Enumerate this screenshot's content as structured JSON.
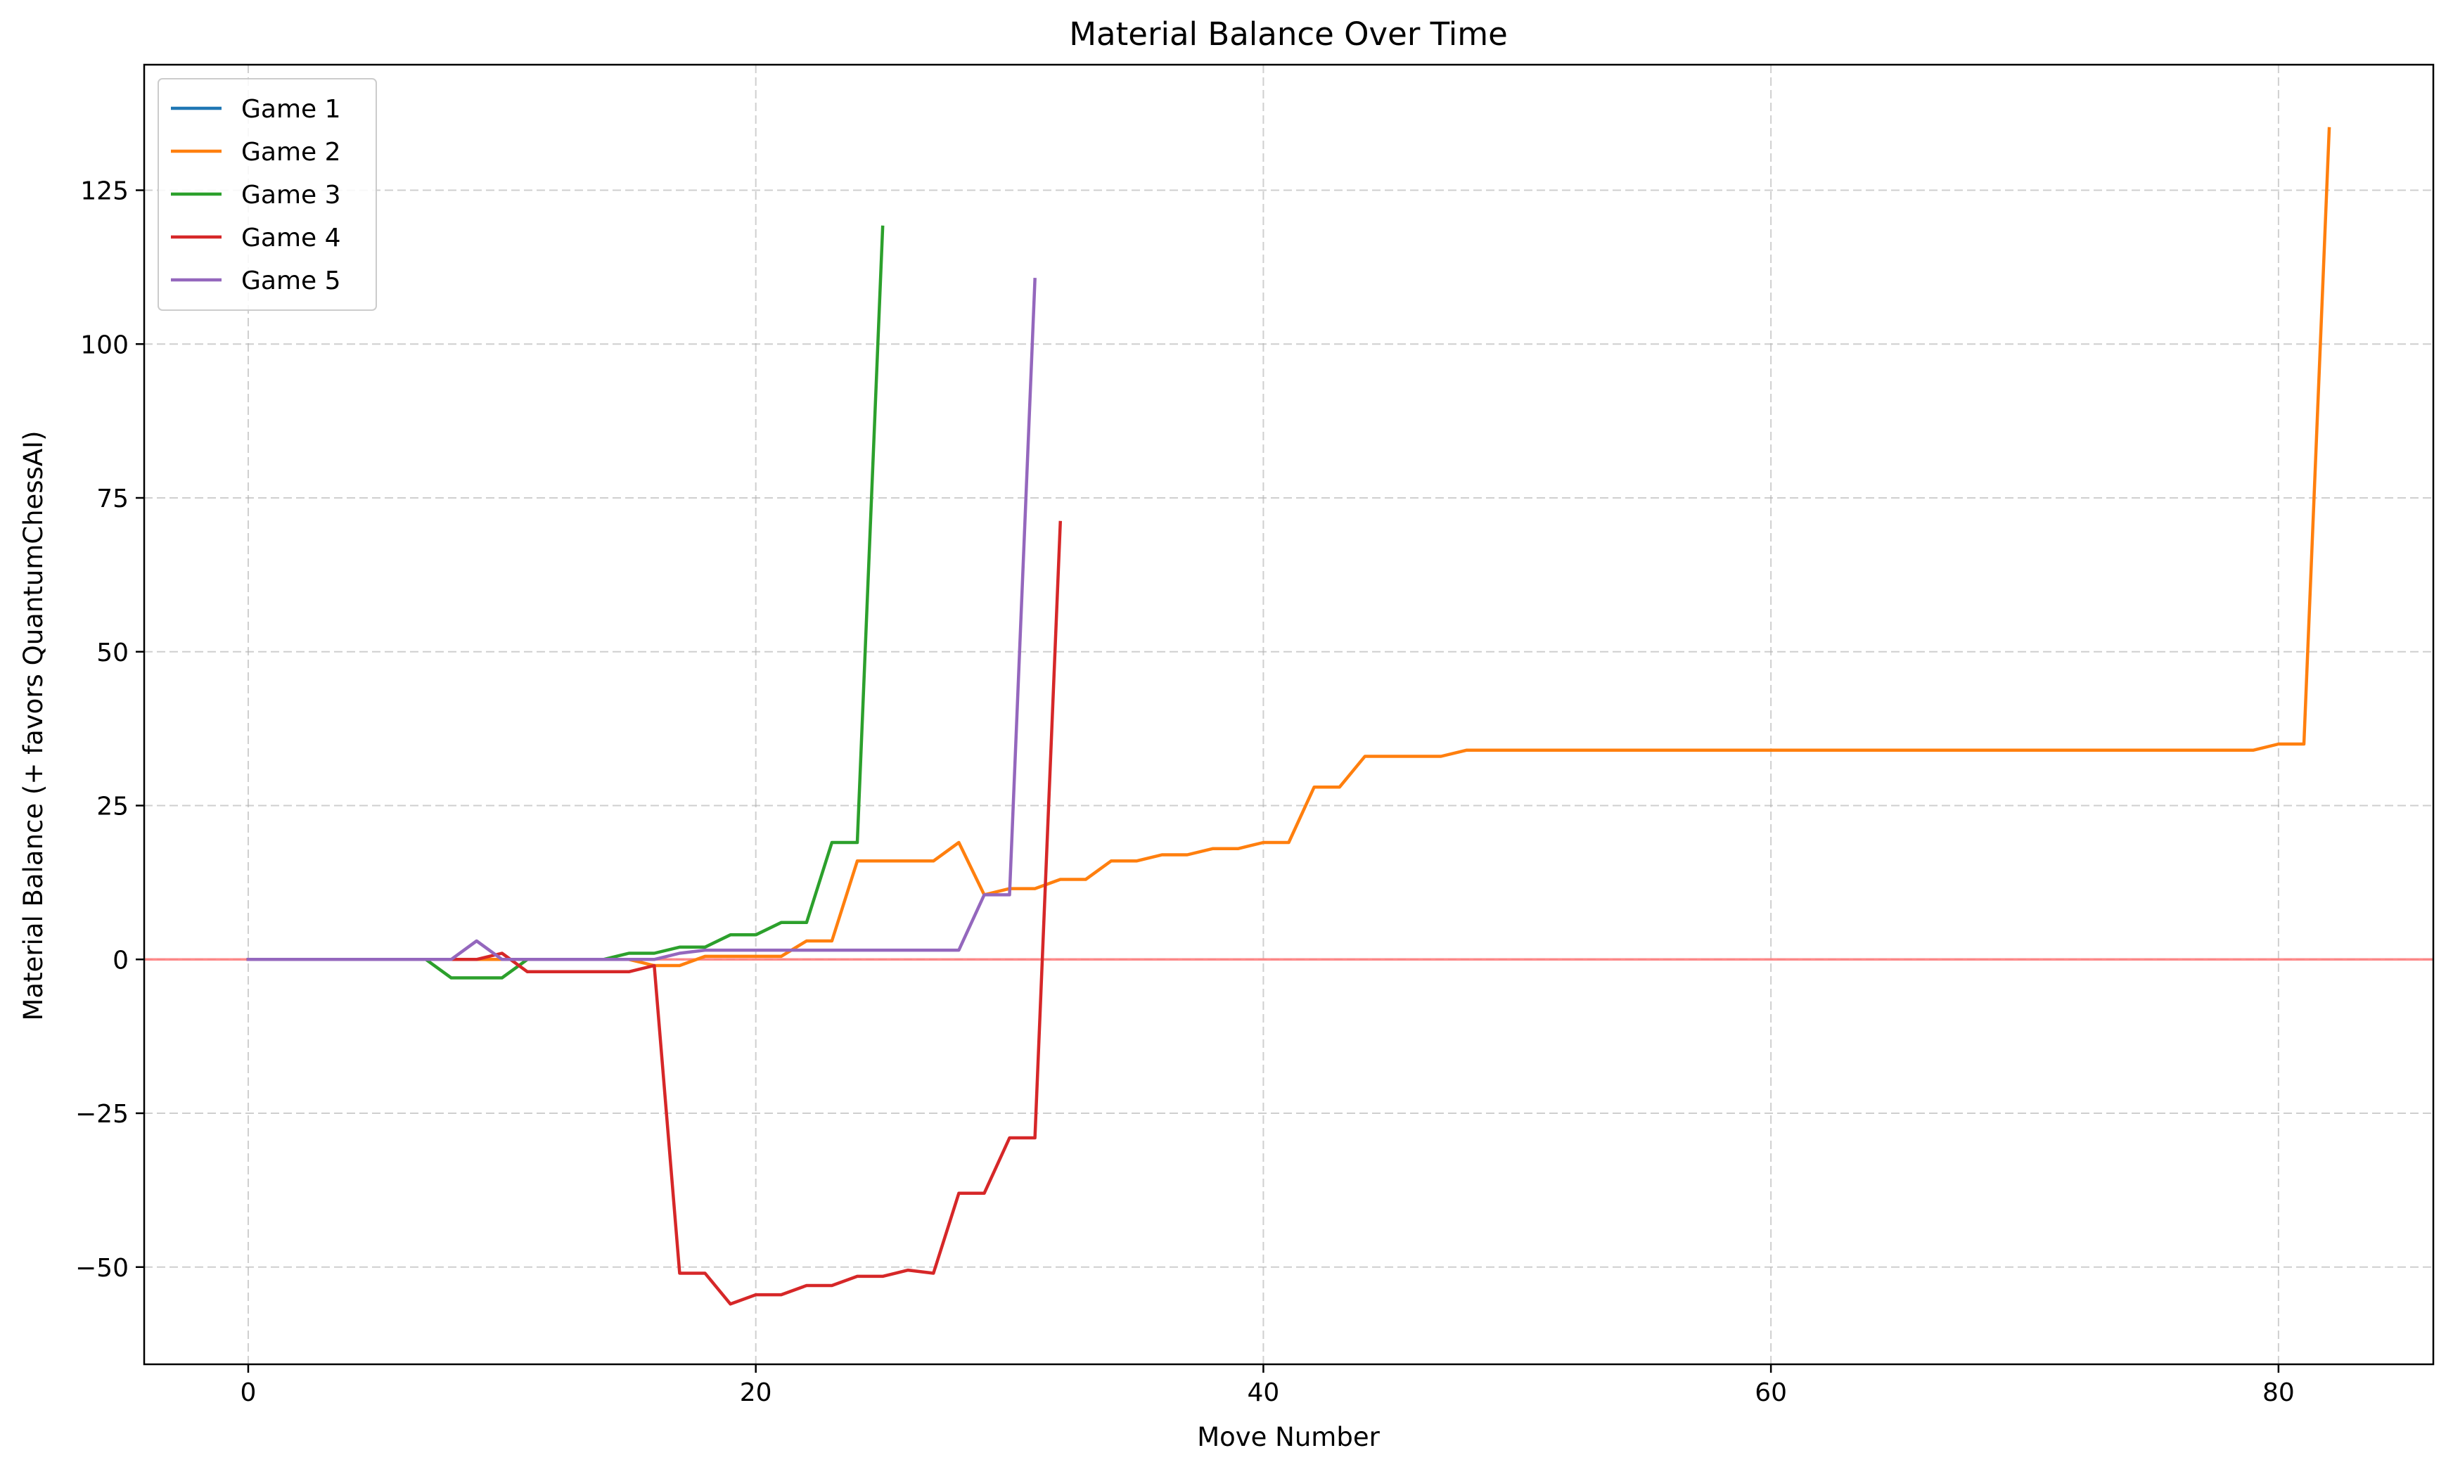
{
  "chart_data": {
    "type": "line",
    "title": "Material Balance Over Time",
    "xlabel": "Move Number",
    "ylabel": "Material Balance (+ favors QuantumChessAI)",
    "xlim": [
      -4.1,
      86.1
    ],
    "ylim": [
      -65.8,
      145.4
    ],
    "xticks": [
      0,
      20,
      40,
      60,
      80
    ],
    "yticks": [
      -50,
      -25,
      0,
      25,
      50,
      75,
      100,
      125
    ],
    "grid": true,
    "legend_position": "top-left",
    "reference_line": {
      "y": 0,
      "color": "#ff7f7f"
    },
    "series": [
      {
        "name": "Game 1",
        "color": "#1f77b4",
        "x": [
          0,
          1,
          2,
          3,
          4,
          5,
          6,
          7,
          8,
          9
        ],
        "y": [
          0,
          0,
          0,
          0,
          0,
          0,
          0,
          0,
          0,
          0
        ]
      },
      {
        "name": "Game 2",
        "color": "#ff7f0e",
        "x": [
          0,
          1,
          2,
          3,
          4,
          5,
          6,
          7,
          8,
          9,
          10,
          11,
          12,
          13,
          14,
          15,
          16,
          17,
          18,
          19,
          20,
          21,
          22,
          23,
          24,
          25,
          26,
          27,
          28,
          29,
          30,
          31,
          32,
          33,
          34,
          35,
          36,
          37,
          38,
          39,
          40,
          41,
          42,
          43,
          44,
          45,
          46,
          47,
          48,
          49,
          50,
          51,
          52,
          53,
          54,
          55,
          56,
          57,
          58,
          59,
          60,
          61,
          62,
          63,
          64,
          65,
          66,
          67,
          68,
          69,
          70,
          71,
          72,
          73,
          74,
          75,
          76,
          77,
          78,
          79,
          80,
          81,
          82
        ],
        "y": [
          0,
          0,
          0,
          0,
          0,
          0,
          0,
          0,
          0,
          0,
          0,
          0,
          0,
          0,
          0,
          0,
          -1,
          -1,
          0.5,
          0.5,
          0.5,
          0.5,
          3,
          3,
          16,
          16,
          16,
          16,
          19,
          10.5,
          11.5,
          11.5,
          13,
          13,
          16,
          16,
          17,
          17,
          18,
          18,
          19,
          19,
          28,
          28,
          33,
          33,
          33,
          33,
          34,
          34,
          34,
          34,
          34,
          34,
          34,
          34,
          34,
          34,
          34,
          34,
          34,
          34,
          34,
          34,
          34,
          34,
          34,
          34,
          34,
          34,
          34,
          34,
          34,
          34,
          34,
          34,
          34,
          34,
          34,
          34,
          35,
          35,
          135
        ]
      },
      {
        "name": "Game 3",
        "color": "#2ca02c",
        "x": [
          0,
          1,
          2,
          3,
          4,
          5,
          6,
          7,
          8,
          9,
          10,
          11,
          12,
          13,
          14,
          15,
          16,
          17,
          18,
          19,
          20,
          21,
          22,
          23,
          24,
          25
        ],
        "y": [
          0,
          0,
          0,
          0,
          0,
          0,
          0,
          0,
          -3,
          -3,
          -3,
          0,
          0,
          0,
          0,
          1,
          1,
          2,
          2,
          4,
          4,
          6,
          6,
          19,
          19,
          119
        ]
      },
      {
        "name": "Game 4",
        "color": "#d62728",
        "x": [
          0,
          1,
          2,
          3,
          4,
          5,
          6,
          7,
          8,
          9,
          10,
          11,
          12,
          13,
          14,
          15,
          16,
          17,
          18,
          19,
          20,
          21,
          22,
          23,
          24,
          25,
          26,
          27,
          28,
          29,
          30,
          31,
          32
        ],
        "y": [
          0,
          0,
          0,
          0,
          0,
          0,
          0,
          0,
          0,
          0,
          1,
          -2,
          -2,
          -2,
          -2,
          -2,
          -1,
          -51,
          -51,
          -56,
          -54.5,
          -54.5,
          -53,
          -53,
          -51.5,
          -51.5,
          -50.5,
          -51,
          -38,
          -38,
          -29,
          -29,
          71
        ]
      },
      {
        "name": "Game 5",
        "color": "#9467bd",
        "x": [
          0,
          1,
          2,
          3,
          4,
          5,
          6,
          7,
          8,
          9,
          10,
          11,
          12,
          13,
          14,
          15,
          16,
          17,
          18,
          19,
          20,
          21,
          22,
          23,
          24,
          25,
          26,
          27,
          28,
          29,
          30,
          31
        ],
        "y": [
          0,
          0,
          0,
          0,
          0,
          0,
          0,
          0,
          0,
          3,
          0,
          0,
          0,
          0,
          0,
          0,
          0,
          1,
          1.5,
          1.5,
          1.5,
          1.5,
          1.5,
          1.5,
          1.5,
          1.5,
          1.5,
          1.5,
          1.5,
          10.5,
          10.5,
          110.5
        ]
      }
    ]
  }
}
